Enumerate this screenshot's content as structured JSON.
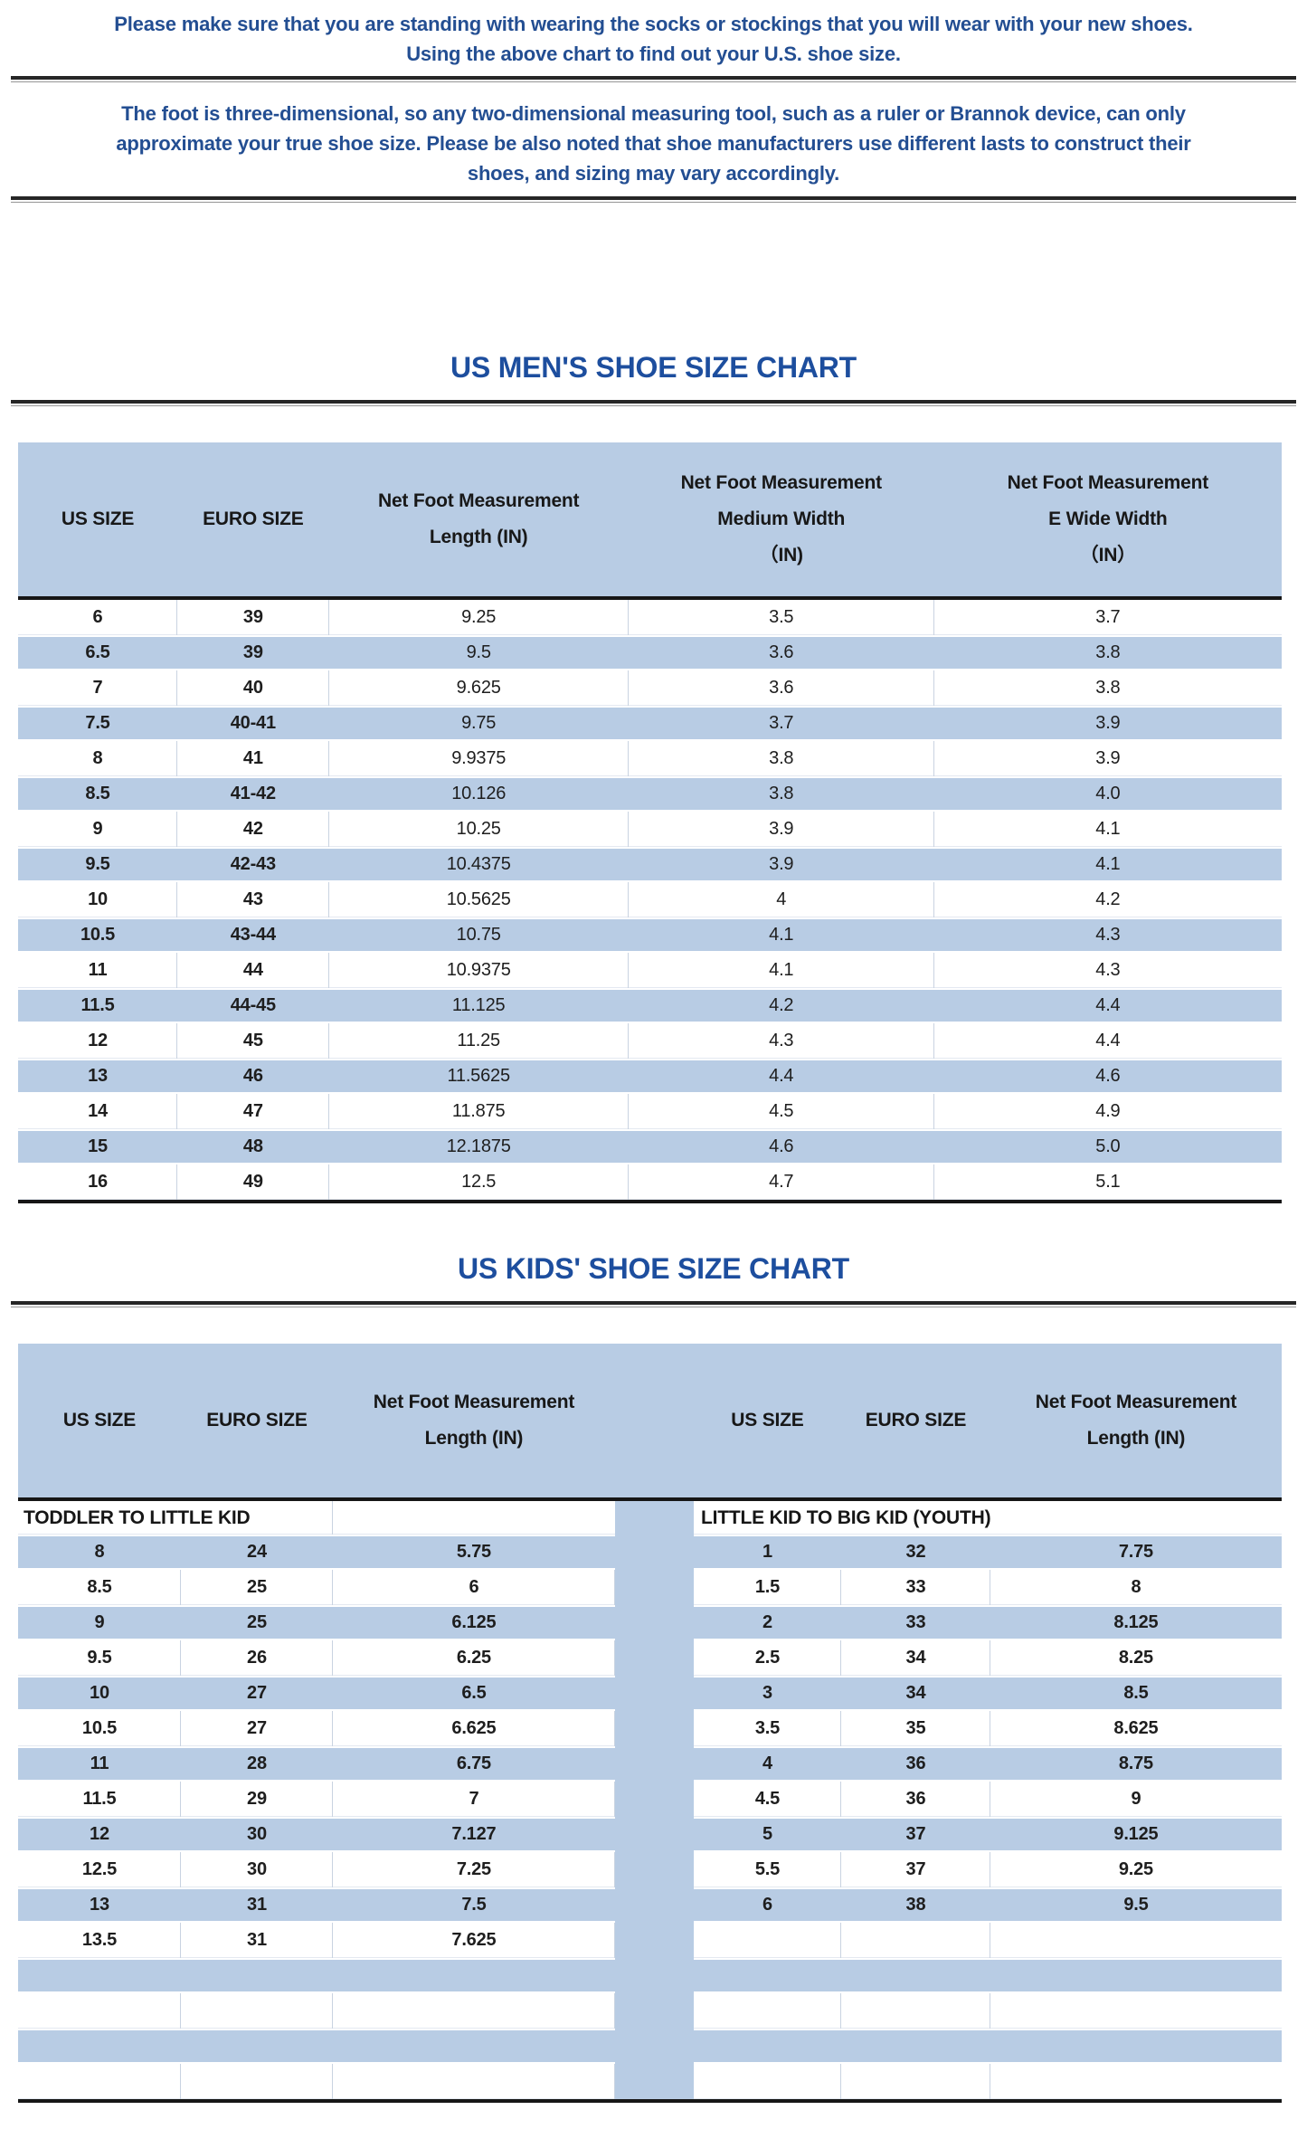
{
  "colors": {
    "row_blue": "#b8cce4",
    "title_blue": "#1d4e9e",
    "paragraph_blue": "#234e92",
    "table_text": "#1f1f1f"
  },
  "intro": {
    "line1": "Please make sure that you are standing with wearing the socks or stockings that you will wear with your new shoes.",
    "line2": "Using the above chart to find out your U.S. shoe size."
  },
  "note": {
    "line1": "The foot is three-dimensional, so any two-dimensional measuring tool, such as a ruler or Brannok device, can only",
    "line2": "approximate your true shoe size. Please be also noted that shoe manufacturers use different lasts to construct their",
    "line3": "shoes, and sizing may vary accordingly."
  },
  "mens": {
    "title": "US MEN'S SHOE SIZE CHART",
    "header": {
      "us": "US SIZE",
      "euro": "EURO SIZE",
      "len1": "Net Foot Measurement",
      "len2": "Length (IN)",
      "med1": "Net Foot Measurement",
      "med2": "Medium Width",
      "med3": "（IN)",
      "wide1": "Net Foot Measurement",
      "wide2": "E Wide Width",
      "wide3": "（IN）"
    },
    "rows": [
      [
        "6",
        "39",
        "9.25",
        "3.5",
        "3.7"
      ],
      [
        "6.5",
        "39",
        "9.5",
        "3.6",
        "3.8"
      ],
      [
        "7",
        "40",
        "9.625",
        "3.6",
        "3.8"
      ],
      [
        "7.5",
        "40-41",
        "9.75",
        "3.7",
        "3.9"
      ],
      [
        "8",
        "41",
        "9.9375",
        "3.8",
        "3.9"
      ],
      [
        "8.5",
        "41-42",
        "10.126",
        "3.8",
        "4.0"
      ],
      [
        "9",
        "42",
        "10.25",
        "3.9",
        "4.1"
      ],
      [
        "9.5",
        "42-43",
        "10.4375",
        "3.9",
        "4.1"
      ],
      [
        "10",
        "43",
        "10.5625",
        "4",
        "4.2"
      ],
      [
        "10.5",
        "43-44",
        "10.75",
        "4.1",
        "4.3"
      ],
      [
        "11",
        "44",
        "10.9375",
        "4.1",
        "4.3"
      ],
      [
        "11.5",
        "44-45",
        "11.125",
        "4.2",
        "4.4"
      ],
      [
        "12",
        "45",
        "11.25",
        "4.3",
        "4.4"
      ],
      [
        "13",
        "46",
        "11.5625",
        "4.4",
        "4.6"
      ],
      [
        "14",
        "47",
        "11.875",
        "4.5",
        "4.9"
      ],
      [
        "15",
        "48",
        "12.1875",
        "4.6",
        "5.0"
      ],
      [
        "16",
        "49",
        "12.5",
        "4.7",
        "5.1"
      ]
    ]
  },
  "kids": {
    "title": "US KIDS' SHOE SIZE CHART",
    "header": {
      "us": "US SIZE",
      "euro": "EURO SIZE",
      "len1": "Net Foot Measurement",
      "len2": "Length (IN)"
    },
    "subheader_left": "TODDLER TO LITTLE KID",
    "subheader_right": "LITTLE KID TO BIG KID (YOUTH)",
    "rows": [
      {
        "left": [
          "8",
          "24",
          "5.75"
        ],
        "right": [
          "1",
          "32",
          "7.75"
        ]
      },
      {
        "left": [
          "8.5",
          "25",
          "6"
        ],
        "right": [
          "1.5",
          "33",
          "8"
        ]
      },
      {
        "left": [
          "9",
          "25",
          "6.125"
        ],
        "right": [
          "2",
          "33",
          "8.125"
        ]
      },
      {
        "left": [
          "9.5",
          "26",
          "6.25"
        ],
        "right": [
          "2.5",
          "34",
          "8.25"
        ]
      },
      {
        "left": [
          "10",
          "27",
          "6.5"
        ],
        "right": [
          "3",
          "34",
          "8.5"
        ]
      },
      {
        "left": [
          "10.5",
          "27",
          "6.625"
        ],
        "right": [
          "3.5",
          "35",
          "8.625"
        ]
      },
      {
        "left": [
          "11",
          "28",
          "6.75"
        ],
        "right": [
          "4",
          "36",
          "8.75"
        ]
      },
      {
        "left": [
          "11.5",
          "29",
          "7"
        ],
        "right": [
          "4.5",
          "36",
          "9"
        ]
      },
      {
        "left": [
          "12",
          "30",
          "7.127"
        ],
        "right": [
          "5",
          "37",
          "9.125"
        ]
      },
      {
        "left": [
          "12.5",
          "30",
          "7.25"
        ],
        "right": [
          "5.5",
          "37",
          "9.25"
        ]
      },
      {
        "left": [
          "13",
          "31",
          "7.5"
        ],
        "right": [
          "6",
          "38",
          "9.5"
        ]
      },
      {
        "left": [
          "13.5",
          "31",
          "7.625"
        ],
        "right": [
          "",
          "",
          ""
        ]
      },
      {
        "left": [
          "",
          "",
          ""
        ],
        "right": [
          "",
          "",
          ""
        ]
      },
      {
        "left": [
          "",
          "",
          ""
        ],
        "right": [
          "",
          "",
          ""
        ]
      },
      {
        "left": [
          "",
          "",
          ""
        ],
        "right": [
          "",
          "",
          ""
        ]
      },
      {
        "left": [
          "",
          "",
          ""
        ],
        "right": [
          "",
          "",
          ""
        ]
      }
    ]
  }
}
